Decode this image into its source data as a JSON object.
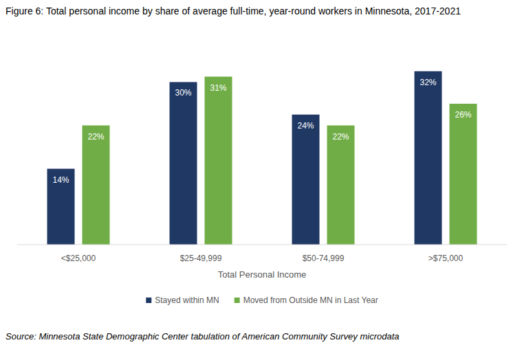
{
  "chart_data": {
    "type": "bar",
    "title": "Figure 6: Total personal income by share of average full-time, year-round workers in Minnesota, 2017-2021",
    "x_label": "Total Personal Income",
    "source": "Source: Minnesota State Demographic Center tabulation of American Community Survey microdata",
    "categories": [
      "<$25,000",
      "$25-49,999",
      "$50-74,999",
      ">$75,000"
    ],
    "series": [
      {
        "name": "Stayed within MN",
        "color": "#203864",
        "values": [
          14,
          30,
          24,
          32
        ],
        "value_labels": [
          "14%",
          "30%",
          "24%",
          "32%"
        ]
      },
      {
        "name": "Moved from Outside MN in Last Year",
        "color": "#70ad47",
        "values": [
          22,
          31,
          22,
          26
        ],
        "value_labels": [
          "22%",
          "31%",
          "22%",
          "26%"
        ]
      }
    ],
    "ylim": [
      0,
      35
    ],
    "grid": false,
    "legend": "bottom",
    "data_labels": true,
    "tick_labels": "x"
  }
}
